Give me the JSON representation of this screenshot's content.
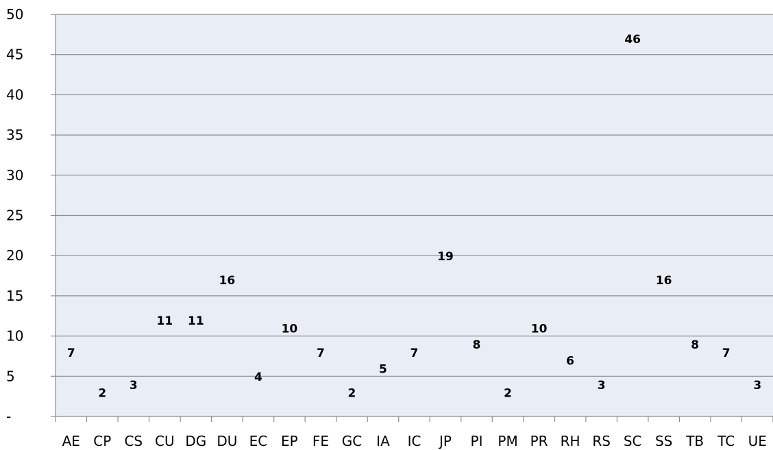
{
  "chart_data": {
    "type": "bar",
    "title": "",
    "xlabel": "",
    "ylabel": "",
    "ylim": [
      0,
      50
    ],
    "yticks": [
      "-",
      "5",
      "10",
      "15",
      "20",
      "25",
      "30",
      "35",
      "40",
      "45",
      "50"
    ],
    "grid": true,
    "legend": "none",
    "colors": {
      "plot_bg": "#e9edf5",
      "grid": "#8c8c8c",
      "axis": "#8c8c8c"
    },
    "categories": [
      "AE",
      "CP",
      "CS",
      "CU",
      "DG",
      "DU",
      "EC",
      "EP",
      "FE",
      "GC",
      "IA",
      "IC",
      "JP",
      "PI",
      "PM",
      "PR",
      "RH",
      "RS",
      "SC",
      "SS",
      "TB",
      "TC",
      "UE"
    ],
    "values": [
      7,
      2,
      3,
      11,
      11,
      16,
      4,
      10,
      7,
      2,
      5,
      7,
      19,
      8,
      2,
      10,
      6,
      3,
      46,
      16,
      8,
      7,
      3
    ]
  }
}
